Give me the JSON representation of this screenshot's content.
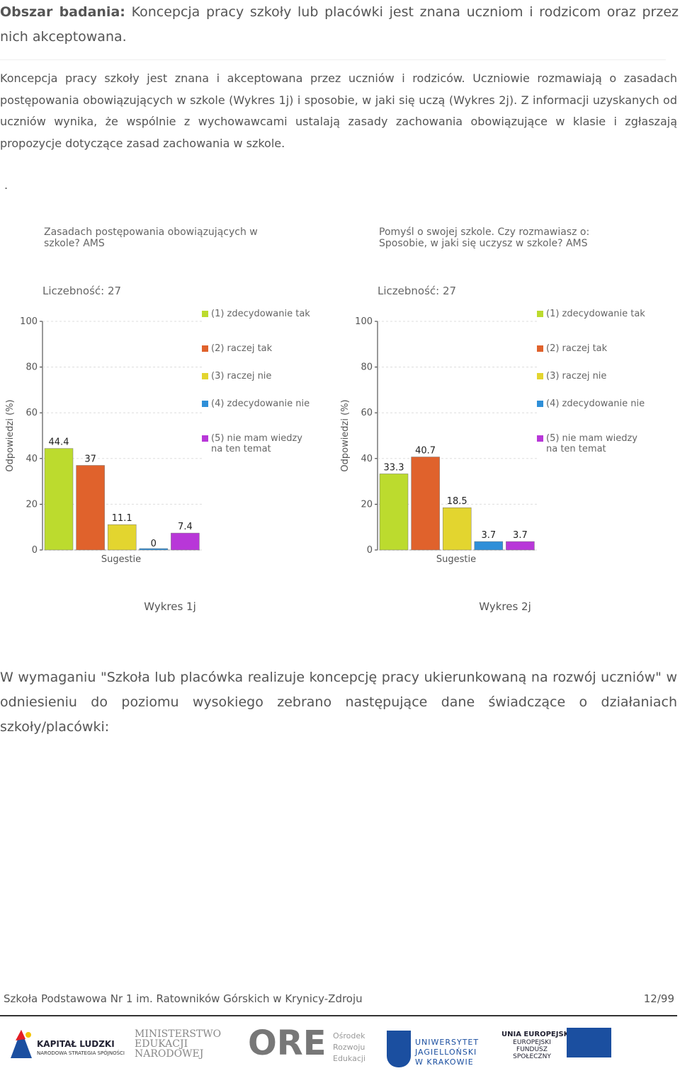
{
  "header": {
    "label": "Obszar badania:",
    "text": "Koncepcja pracy szkoły lub placówki jest znana uczniom i rodzicom oraz przez nich akceptowana."
  },
  "paragraph": "Koncepcja pracy szkoły jest znana i akceptowana przez uczniów i rodziców. Uczniowie rozmawiają o zasadach postępowania obowiązujących w szkole (Wykres 1j) i sposobie, w jaki się uczą (Wykres 2j). Z informacji uzyskanych od uczniów wynika, że wspólnie z wychowawcami ustalają zasady zachowania obowiązujące w klasie i zgłaszają propozycje dotyczące zasad zachowania w szkole.",
  "dot": ".",
  "chart_data": [
    {
      "type": "bar",
      "title": "Zasadach postępowania obowiązujących w szkole? AMS",
      "count": "Liczebność: 27",
      "ylabel": "Odpowiedzi (%)",
      "xlabel": "Sugestie",
      "caption": "Wykres 1j",
      "categories": [
        "(1) zdecydowanie tak",
        "(2) raczej tak",
        "(3) raczej nie",
        "(4) zdecydowanie nie",
        "(5) nie mam wiedzy na ten temat"
      ],
      "colors": [
        "#bcdb2e",
        "#e0622c",
        "#e3d52f",
        "#2f8fd8",
        "#b837d8"
      ],
      "values": [
        44.4,
        37,
        11.1,
        0,
        7.4
      ],
      "ylim": [
        0,
        100
      ],
      "yticks": [
        0,
        20,
        40,
        60,
        80,
        100
      ],
      "grid": true
    },
    {
      "type": "bar",
      "title": "Pomyśl o swojej szkole. Czy rozmawiasz o: Sposobie, w jaki się uczysz w szkole? AMS",
      "count": "Liczebność: 27",
      "ylabel": "Odpowiedzi (%)",
      "xlabel": "Sugestie",
      "caption": "Wykres 2j",
      "categories": [
        "(1) zdecydowanie tak",
        "(2) raczej tak",
        "(3) raczej nie",
        "(4) zdecydowanie nie",
        "(5) nie mam wiedzy na ten temat"
      ],
      "colors": [
        "#bcdb2e",
        "#e0622c",
        "#e3d52f",
        "#2f8fd8",
        "#b837d8"
      ],
      "values": [
        33.3,
        40.7,
        18.5,
        3.7,
        3.7
      ],
      "ylim": [
        0,
        100
      ],
      "yticks": [
        0,
        20,
        40,
        60,
        80,
        100
      ],
      "grid": true
    }
  ],
  "paragraph2": "W wymaganiu \"Szkoła lub placówka realizuje koncepcję pracy ukierunkowaną na rozwój uczniów\" w odniesieniu do poziomu wysokiego zebrano następujące dane świadczące o działaniach szkoły/placówki:",
  "footer": {
    "school": "Szkoła Podstawowa Nr 1 im. Ratowników Górskich w Krynicy-Zdroju",
    "page": "12/99"
  },
  "logos": {
    "kl": "KAPITAŁ LUDZKI",
    "kl_sub": "NARODOWA STRATEGIA SPÓJNOŚCI",
    "men": "MINISTERSTWO EDUKACJI NARODOWEJ",
    "ore": "ORE",
    "ore_sub": "Ośrodek Rozwoju Edukacji",
    "uj": "UNIWERSYTET JAGIELLOŃSKI W KRAKOWIE",
    "ue": "UNIA EUROPEJSKA",
    "ue_sub": "EUROPEJSKI FUNDUSZ SPOŁECZNY"
  }
}
